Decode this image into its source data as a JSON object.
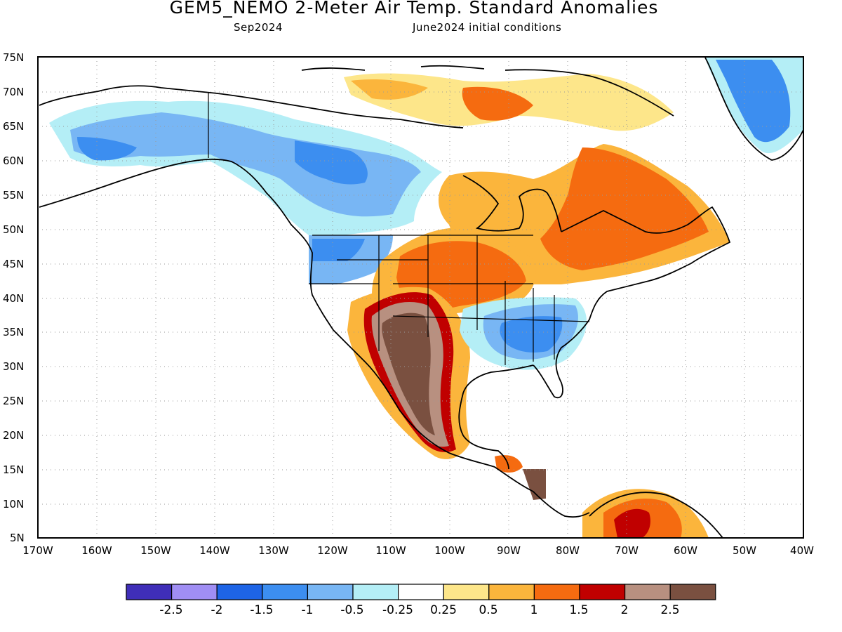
{
  "header": {
    "title": "GEM5_NEMO 2-Meter Air Temp. Standard Anomalies",
    "valid_month": "Sep2024",
    "initial_conditions": "June2024 initial conditions"
  },
  "map": {
    "projection": "cylindrical equidistant",
    "lon_range": [
      -170,
      -40
    ],
    "lat_range": [
      5,
      75
    ],
    "lat_ticks": [
      "75N",
      "70N",
      "65N",
      "60N",
      "55N",
      "50N",
      "45N",
      "40N",
      "35N",
      "30N",
      "25N",
      "20N",
      "15N",
      "10N",
      "5N"
    ],
    "lon_ticks": [
      "170W",
      "160W",
      "150W",
      "140W",
      "130W",
      "120W",
      "110W",
      "100W",
      "90W",
      "80W",
      "70W",
      "60W",
      "50W",
      "40W"
    ],
    "grid": "dotted"
  },
  "legend": {
    "labels": [
      "-2.5",
      "-2",
      "-1.5",
      "-1",
      "-0.5",
      "-0.25",
      "0.25",
      "0.5",
      "1",
      "1.5",
      "2",
      "2.5"
    ],
    "colors": [
      "#3f2eb8",
      "#a08ef4",
      "#1e64e6",
      "#3c8ef0",
      "#78b6f4",
      "#b4eef6",
      "#ffffff",
      "#fde68a",
      "#fbb53c",
      "#f56b10",
      "#c00000",
      "#b89080",
      "#7a5040"
    ]
  }
}
